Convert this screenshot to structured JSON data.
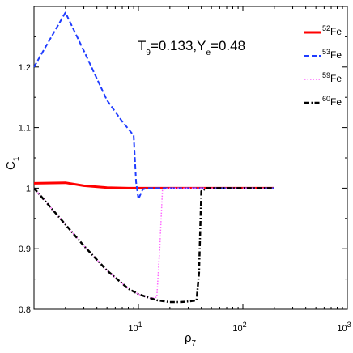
{
  "chart_data": {
    "type": "line",
    "annotation": {
      "main": "T",
      "main_sub": "9",
      "mid": "=0.133,Y",
      "mid_sub": "e",
      "tail": "=0.48"
    },
    "xlabel": {
      "base": "ρ",
      "sub": "7"
    },
    "ylabel": {
      "base": "C",
      "sub": "1"
    },
    "x_scale": "log",
    "xlim": [
      1,
      1000
    ],
    "ylim": [
      0.8,
      1.3
    ],
    "x_ticks": [
      {
        "value": 10,
        "base": "10",
        "exp": "1"
      },
      {
        "value": 100,
        "base": "10",
        "exp": "2"
      },
      {
        "value": 1000,
        "base": "10",
        "exp": "3"
      }
    ],
    "y_ticks": [
      {
        "value": 0.8,
        "label": "0.8"
      },
      {
        "value": 0.9,
        "label": "0.9"
      },
      {
        "value": 1.0,
        "label": "1"
      },
      {
        "value": 1.1,
        "label": "1.1"
      },
      {
        "value": 1.2,
        "label": "1.2"
      }
    ],
    "grid": false,
    "legend_position": "top-right",
    "series": [
      {
        "name": "Fe",
        "mass": "52",
        "color": "#ff0000",
        "style": "solid",
        "x": [
          1,
          2,
          3,
          5,
          8,
          10,
          20,
          50,
          100,
          200
        ],
        "y": [
          1.008,
          1.009,
          1.004,
          1.001,
          1.0,
          1.0,
          1.0,
          1.0,
          1.0,
          1.0
        ]
      },
      {
        "name": "Fe",
        "mass": "53",
        "color": "#1f3cff",
        "style": "dashed",
        "x": [
          1,
          2,
          3,
          5,
          7,
          9,
          9.5,
          10,
          11,
          12,
          15,
          20,
          50,
          100,
          200
        ],
        "y": [
          1.2,
          1.29,
          1.227,
          1.145,
          1.11,
          1.087,
          1.01,
          0.982,
          0.998,
          1.0,
          1.0,
          1.0,
          1.0,
          1.0,
          1.0
        ]
      },
      {
        "name": "Fe",
        "mass": "59",
        "color": "#ff66ff",
        "style": "dotted",
        "x": [
          1,
          2,
          3,
          5,
          8,
          10,
          13,
          15,
          16,
          17,
          20,
          50,
          100,
          200
        ],
        "y": [
          1.0,
          0.94,
          0.905,
          0.864,
          0.834,
          0.825,
          0.818,
          0.82,
          0.9,
          0.998,
          1.0,
          1.0,
          1.0,
          1.0
        ]
      },
      {
        "name": "Fe",
        "mass": "60",
        "color": "#000000",
        "style": "dashdot",
        "x": [
          1,
          2,
          3,
          5,
          8,
          10,
          15,
          20,
          25,
          30,
          36,
          38,
          40,
          45,
          100,
          200
        ],
        "y": [
          1.0,
          0.94,
          0.905,
          0.864,
          0.834,
          0.825,
          0.815,
          0.812,
          0.812,
          0.813,
          0.815,
          0.86,
          0.995,
          1.0,
          1.0,
          1.0
        ]
      }
    ]
  }
}
